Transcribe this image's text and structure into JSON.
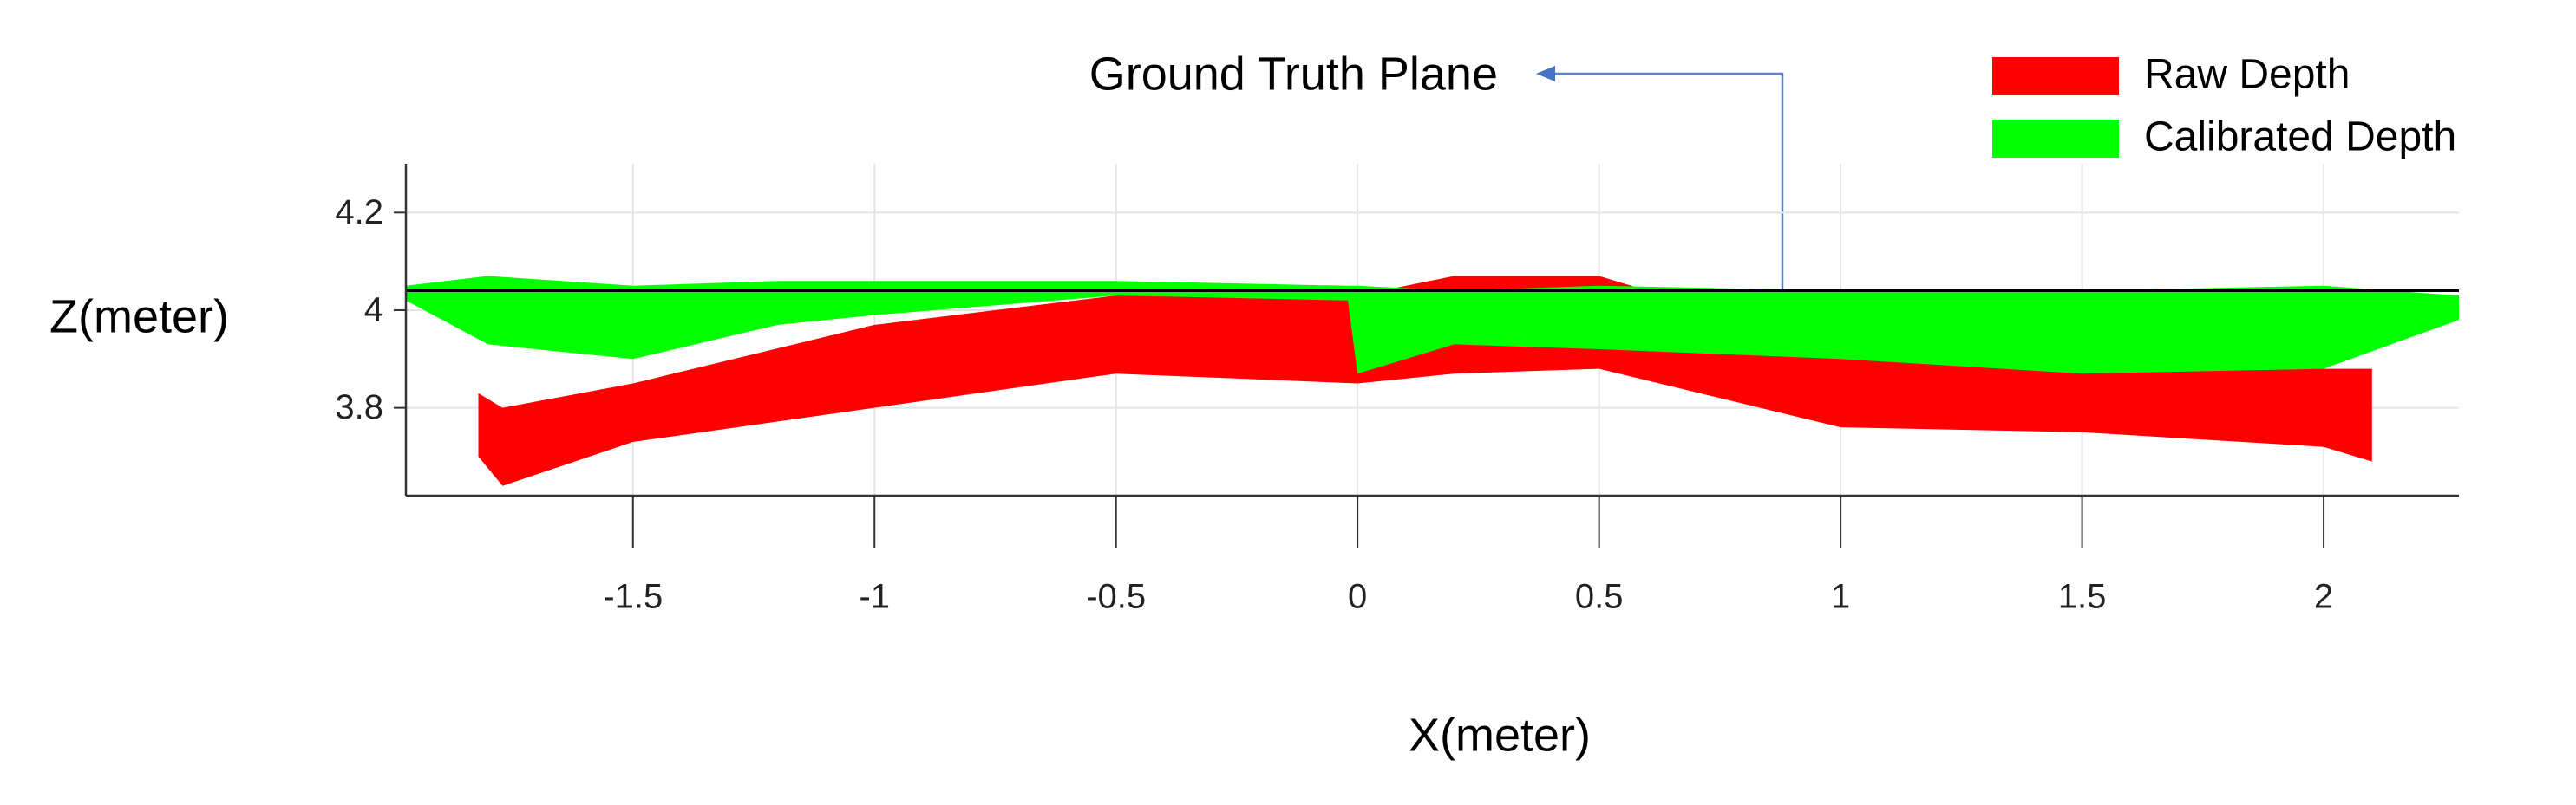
{
  "chart_data": {
    "type": "band",
    "xlabel": "X(meter)",
    "ylabel": "Z(meter)",
    "xlim": [
      -1.97,
      2.28
    ],
    "ylim": [
      3.62,
      4.3
    ],
    "xticks": [
      -1.5,
      -1,
      -0.5,
      0,
      0.5,
      1,
      1.5,
      2
    ],
    "yticks": [
      3.8,
      4,
      4.2
    ],
    "grid": true,
    "legend": "top-right",
    "ground_truth_plane": {
      "label": "Ground Truth Plane",
      "z": 4.04,
      "color": "#000000"
    },
    "series": [
      {
        "name": "Raw Depth",
        "color": "#ff0000",
        "x": [
          -1.82,
          -1.77,
          -1.5,
          -1.0,
          -0.5,
          0,
          0.2,
          0.5,
          1.0,
          1.5,
          2.0,
          2.1
        ],
        "upper": [
          3.83,
          3.8,
          3.85,
          3.97,
          4.03,
          4.03,
          4.07,
          4.07,
          3.92,
          3.89,
          3.88,
          3.88
        ],
        "lower": [
          3.7,
          3.64,
          3.73,
          3.8,
          3.87,
          3.85,
          3.87,
          3.88,
          3.76,
          3.75,
          3.72,
          3.69
        ]
      },
      {
        "name": "Calibrated Depth",
        "color": "#00ff00",
        "x": [
          -1.97,
          -1.8,
          -1.5,
          -1.2,
          -1.0,
          -0.5,
          -0.02,
          0,
          0.2,
          0.5,
          1.0,
          1.5,
          2.0,
          2.28
        ],
        "upper": [
          4.05,
          4.07,
          4.05,
          4.06,
          4.06,
          4.06,
          4.05,
          4.05,
          4.04,
          4.05,
          4.04,
          4.04,
          4.05,
          4.03
        ],
        "lower": [
          4.02,
          3.93,
          3.9,
          3.97,
          3.99,
          4.03,
          4.02,
          3.87,
          3.93,
          3.92,
          3.9,
          3.87,
          3.88,
          3.98
        ]
      }
    ]
  }
}
